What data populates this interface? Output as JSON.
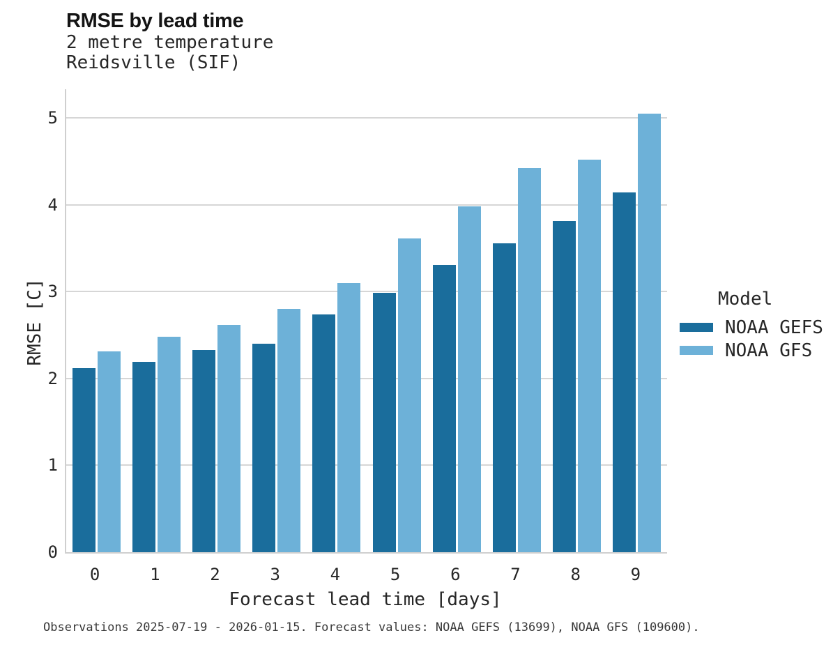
{
  "header": {
    "title": "RMSE by lead time",
    "subtitle1": "2 metre temperature",
    "subtitle2": "Reidsville (SIF)"
  },
  "chart_data": {
    "type": "bar",
    "title": "RMSE by lead time",
    "subtitle": [
      "2 metre temperature",
      "Reidsville (SIF)"
    ],
    "xlabel": "Forecast lead time [days]",
    "ylabel": "RMSE [C]",
    "categories": [
      "0",
      "1",
      "2",
      "3",
      "4",
      "5",
      "6",
      "7",
      "8",
      "9"
    ],
    "series": [
      {
        "name": "NOAA GEFS",
        "color": "#1a6d9c",
        "values": [
          2.12,
          2.19,
          2.33,
          2.4,
          2.74,
          2.99,
          3.31,
          3.56,
          3.81,
          4.14
        ]
      },
      {
        "name": "NOAA GFS",
        "color": "#6db1d8",
        "values": [
          2.31,
          2.48,
          2.62,
          2.8,
          3.1,
          3.61,
          3.98,
          4.42,
          4.52,
          5.05
        ]
      }
    ],
    "ylim": [
      0,
      5.33
    ],
    "yticks": [
      0,
      1,
      2,
      3,
      4,
      5
    ],
    "grid": true,
    "legend_title": "Model",
    "legend_position": "right"
  },
  "legend": {
    "title": "Model",
    "items": [
      {
        "label": "NOAA GEFS",
        "color": "#1a6d9c"
      },
      {
        "label": "NOAA GFS",
        "color": "#6db1d8"
      }
    ]
  },
  "colors": {
    "gefs": "#1a6d9c",
    "gfs": "#6db1d8",
    "gridline": "#d6d6d6",
    "spine": "#cfcfcf",
    "text": "#262626"
  },
  "caption": "Observations 2025-07-19 - 2026-01-15. Forecast values: NOAA GEFS (13699), NOAA GFS (109600)."
}
